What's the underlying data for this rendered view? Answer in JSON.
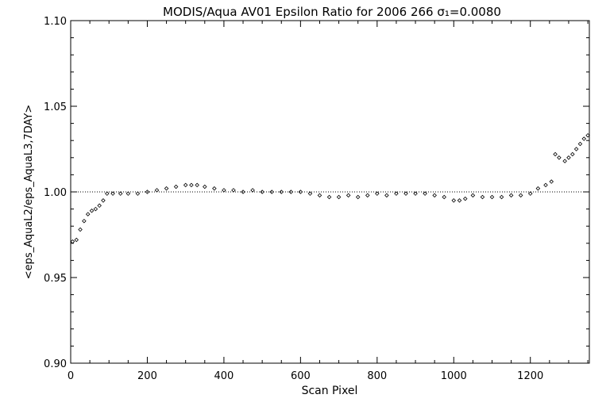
{
  "chart_data": {
    "type": "scatter",
    "title": "MODIS/Aqua AV01 Epsilon Ratio for 2006 266 σ₁=0.0080",
    "xlabel": "Scan Pixel",
    "ylabel": "<eps_AquaL2/eps_AquaL3,7DAY>",
    "xlim": [
      0,
      1354
    ],
    "ylim": [
      0.9,
      1.1
    ],
    "x_ticks": [
      "0",
      "200",
      "400",
      "600",
      "800",
      "1000",
      "1200"
    ],
    "y_ticks": [
      "0.90",
      "0.95",
      "1.00",
      "1.05",
      "1.10"
    ],
    "reference_line": 1.0,
    "grid": false,
    "marker": "small diamond",
    "series": [
      {
        "values_x": [
          5,
          15,
          25,
          35,
          45,
          55,
          65,
          75,
          85,
          95,
          110,
          130,
          150,
          175,
          200,
          225,
          250,
          275,
          300,
          315,
          330,
          350,
          375,
          400,
          425,
          450,
          475,
          500,
          525,
          550,
          575,
          600,
          625,
          650,
          675,
          700,
          725,
          750,
          775,
          800,
          825,
          850,
          875,
          900,
          925,
          950,
          975,
          1000,
          1015,
          1030,
          1050,
          1075,
          1100,
          1125,
          1150,
          1175,
          1200,
          1220,
          1240,
          1255,
          1265,
          1275,
          1290,
          1300,
          1310,
          1320,
          1330,
          1340,
          1350
        ],
        "values_y": [
          0.971,
          0.972,
          0.978,
          0.983,
          0.987,
          0.989,
          0.99,
          0.992,
          0.995,
          0.999,
          0.999,
          0.999,
          0.999,
          0.999,
          1.0,
          1.001,
          1.002,
          1.003,
          1.004,
          1.004,
          1.004,
          1.003,
          1.002,
          1.001,
          1.001,
          1.0,
          1.001,
          1.0,
          1.0,
          1.0,
          1.0,
          1.0,
          0.999,
          0.998,
          0.997,
          0.997,
          0.998,
          0.997,
          0.998,
          0.999,
          0.998,
          0.999,
          0.999,
          0.999,
          0.999,
          0.998,
          0.997,
          0.995,
          0.995,
          0.996,
          0.998,
          0.997,
          0.997,
          0.997,
          0.998,
          0.998,
          0.999,
          1.002,
          1.004,
          1.006,
          1.022,
          1.02,
          1.018,
          1.02,
          1.022,
          1.025,
          1.028,
          1.031,
          1.033
        ]
      }
    ]
  }
}
